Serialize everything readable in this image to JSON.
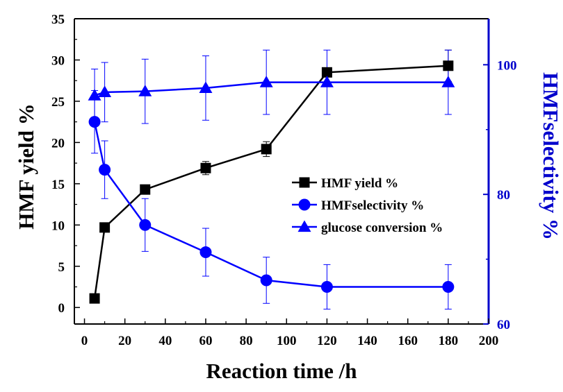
{
  "chart_data": {
    "type": "line",
    "xlabel": "Reaction time /h",
    "ylabel_left": "HMF yield %",
    "ylabel_right": "HMFselectivity %",
    "xlim": [
      -5,
      200
    ],
    "xticks": [
      0,
      20,
      40,
      60,
      80,
      100,
      120,
      140,
      160,
      180,
      200
    ],
    "ylim_left": [
      -2,
      35
    ],
    "yticks_left": [
      0,
      5,
      10,
      15,
      20,
      25,
      30,
      35
    ],
    "ylim_right": [
      60,
      107.1
    ],
    "yticks_right": [
      60,
      80,
      100
    ],
    "grid": false,
    "legend_position": "center-right",
    "colors": {
      "left_axis": "#000000",
      "right_axis": "#0000cc",
      "selectivity": "#0000ff",
      "conversion": "#0000ff",
      "yield": "#000000"
    },
    "series": [
      {
        "name": "HMF yield %",
        "axis": "left",
        "marker": "square",
        "x": [
          5,
          10,
          30,
          60,
          90,
          120,
          180
        ],
        "y": [
          1.1,
          9.7,
          14.3,
          16.9,
          19.2,
          28.5,
          29.3
        ],
        "err": [
          0,
          0,
          0.3,
          0.8,
          0.9,
          0.4,
          1.9
        ]
      },
      {
        "name": "HMFselectivity %",
        "axis": "left",
        "marker": "circle",
        "x": [
          5,
          10,
          30,
          60,
          90,
          120,
          180
        ],
        "y": [
          22.5,
          16.7,
          10.0,
          6.7,
          3.3,
          2.5,
          2.5
        ],
        "err": [
          3.8,
          3.5,
          3.2,
          2.9,
          2.8,
          2.7,
          2.7
        ]
      },
      {
        "name": "glucose conversion %",
        "axis": "left",
        "marker": "triangle",
        "x": [
          5,
          10,
          30,
          60,
          90,
          120,
          180
        ],
        "y": [
          25.7,
          26.1,
          26.2,
          26.6,
          27.3,
          27.3,
          27.3
        ],
        "err": [
          3.2,
          3.6,
          3.9,
          3.9,
          3.9,
          3.9,
          3.9
        ]
      }
    ]
  }
}
